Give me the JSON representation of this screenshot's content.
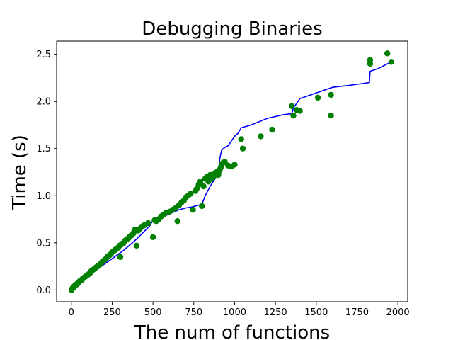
{
  "chart_data": {
    "type": "scatter",
    "title": "Debugging Binaries",
    "xlabel": "The num of functions",
    "ylabel": "Time (s)",
    "xlim": [
      -90,
      2060
    ],
    "ylim": [
      -0.125,
      2.64
    ],
    "xticks": [
      0,
      250,
      500,
      750,
      1000,
      1250,
      1500,
      1750,
      2000
    ],
    "xtick_labels": [
      "0",
      "250",
      "500",
      "750",
      "1000",
      "1250",
      "1500",
      "1750",
      "2000"
    ],
    "yticks": [
      0.0,
      0.5,
      1.0,
      1.5,
      2.0,
      2.5
    ],
    "ytick_labels": [
      "0.0",
      "0.5",
      "1.0",
      "1.5",
      "2.0",
      "2.5"
    ],
    "grid": false,
    "colors": {
      "points": "#008000",
      "line": "#0000ff"
    },
    "series": [
      {
        "kind": "scatter",
        "x": [
          2,
          5,
          8,
          10,
          14,
          18,
          22,
          26,
          30,
          35,
          40,
          45,
          50,
          55,
          60,
          65,
          70,
          78,
          85,
          92,
          100,
          108,
          115,
          122,
          130,
          138,
          145,
          152,
          160,
          168,
          175,
          182,
          190,
          198,
          205,
          212,
          220,
          228,
          235,
          242,
          250,
          258,
          265,
          272,
          280,
          288,
          295,
          300,
          305,
          312,
          320,
          328,
          335,
          342,
          350,
          360,
          370,
          380,
          385,
          390,
          400,
          410,
          420,
          430,
          440,
          450,
          470,
          500,
          510,
          520,
          535,
          550,
          565,
          580,
          600,
          620,
          640,
          650,
          660,
          675,
          690,
          700,
          715,
          730,
          745,
          760,
          770,
          780,
          790,
          800,
          810,
          820,
          830,
          840,
          850,
          860,
          870,
          880,
          890,
          900,
          905,
          910,
          915,
          920,
          930,
          940,
          960,
          980,
          1000,
          1040,
          1050,
          1160,
          1230,
          1350,
          1360,
          1380,
          1400,
          1510,
          1590,
          1590,
          1830,
          1830,
          1935,
          1960
        ],
        "y": [
          0.0,
          0.01,
          0.02,
          0.02,
          0.03,
          0.04,
          0.04,
          0.05,
          0.06,
          0.06,
          0.07,
          0.08,
          0.09,
          0.1,
          0.1,
          0.11,
          0.12,
          0.13,
          0.14,
          0.15,
          0.16,
          0.17,
          0.18,
          0.2,
          0.21,
          0.22,
          0.23,
          0.24,
          0.25,
          0.26,
          0.27,
          0.28,
          0.3,
          0.31,
          0.32,
          0.33,
          0.35,
          0.36,
          0.37,
          0.38,
          0.4,
          0.41,
          0.42,
          0.43,
          0.44,
          0.45,
          0.47,
          0.35,
          0.48,
          0.49,
          0.5,
          0.52,
          0.53,
          0.54,
          0.55,
          0.57,
          0.58,
          0.6,
          0.62,
          0.64,
          0.47,
          0.63,
          0.65,
          0.67,
          0.68,
          0.69,
          0.71,
          0.56,
          0.74,
          0.73,
          0.75,
          0.78,
          0.8,
          0.82,
          0.83,
          0.85,
          0.87,
          0.73,
          0.9,
          0.93,
          0.95,
          0.98,
          1.0,
          1.02,
          0.85,
          1.05,
          1.08,
          1.12,
          1.15,
          0.89,
          1.1,
          1.18,
          1.2,
          1.15,
          1.22,
          1.18,
          1.2,
          1.24,
          1.25,
          1.22,
          1.26,
          1.28,
          1.3,
          1.33,
          1.35,
          1.36,
          1.32,
          1.31,
          1.33,
          1.6,
          1.5,
          1.63,
          1.7,
          1.95,
          1.85,
          1.91,
          1.9,
          2.04,
          1.85,
          2.07,
          2.44,
          2.4,
          2.51,
          2.42
        ]
      },
      {
        "kind": "line",
        "x": [
          0,
          20,
          40,
          60,
          80,
          100,
          130,
          160,
          200,
          240,
          280,
          320,
          360,
          400,
          440,
          480,
          500,
          540,
          580,
          620,
          660,
          700,
          740,
          780,
          800,
          820,
          850,
          880,
          900,
          910,
          920,
          930,
          960,
          1000,
          1020,
          1040,
          1100,
          1200,
          1300,
          1350,
          1360,
          1400,
          1500,
          1600,
          1700,
          1825,
          1830,
          1880,
          1960
        ],
        "y": [
          0.0,
          0.03,
          0.06,
          0.08,
          0.11,
          0.14,
          0.18,
          0.22,
          0.27,
          0.32,
          0.37,
          0.42,
          0.48,
          0.54,
          0.61,
          0.68,
          0.74,
          0.76,
          0.79,
          0.82,
          0.85,
          0.87,
          0.88,
          0.9,
          0.91,
          1.0,
          1.1,
          1.18,
          1.25,
          1.4,
          1.48,
          1.5,
          1.53,
          1.63,
          1.66,
          1.72,
          1.75,
          1.82,
          1.86,
          1.87,
          1.93,
          2.03,
          2.09,
          2.15,
          2.17,
          2.2,
          2.32,
          2.35,
          2.42
        ]
      }
    ]
  }
}
